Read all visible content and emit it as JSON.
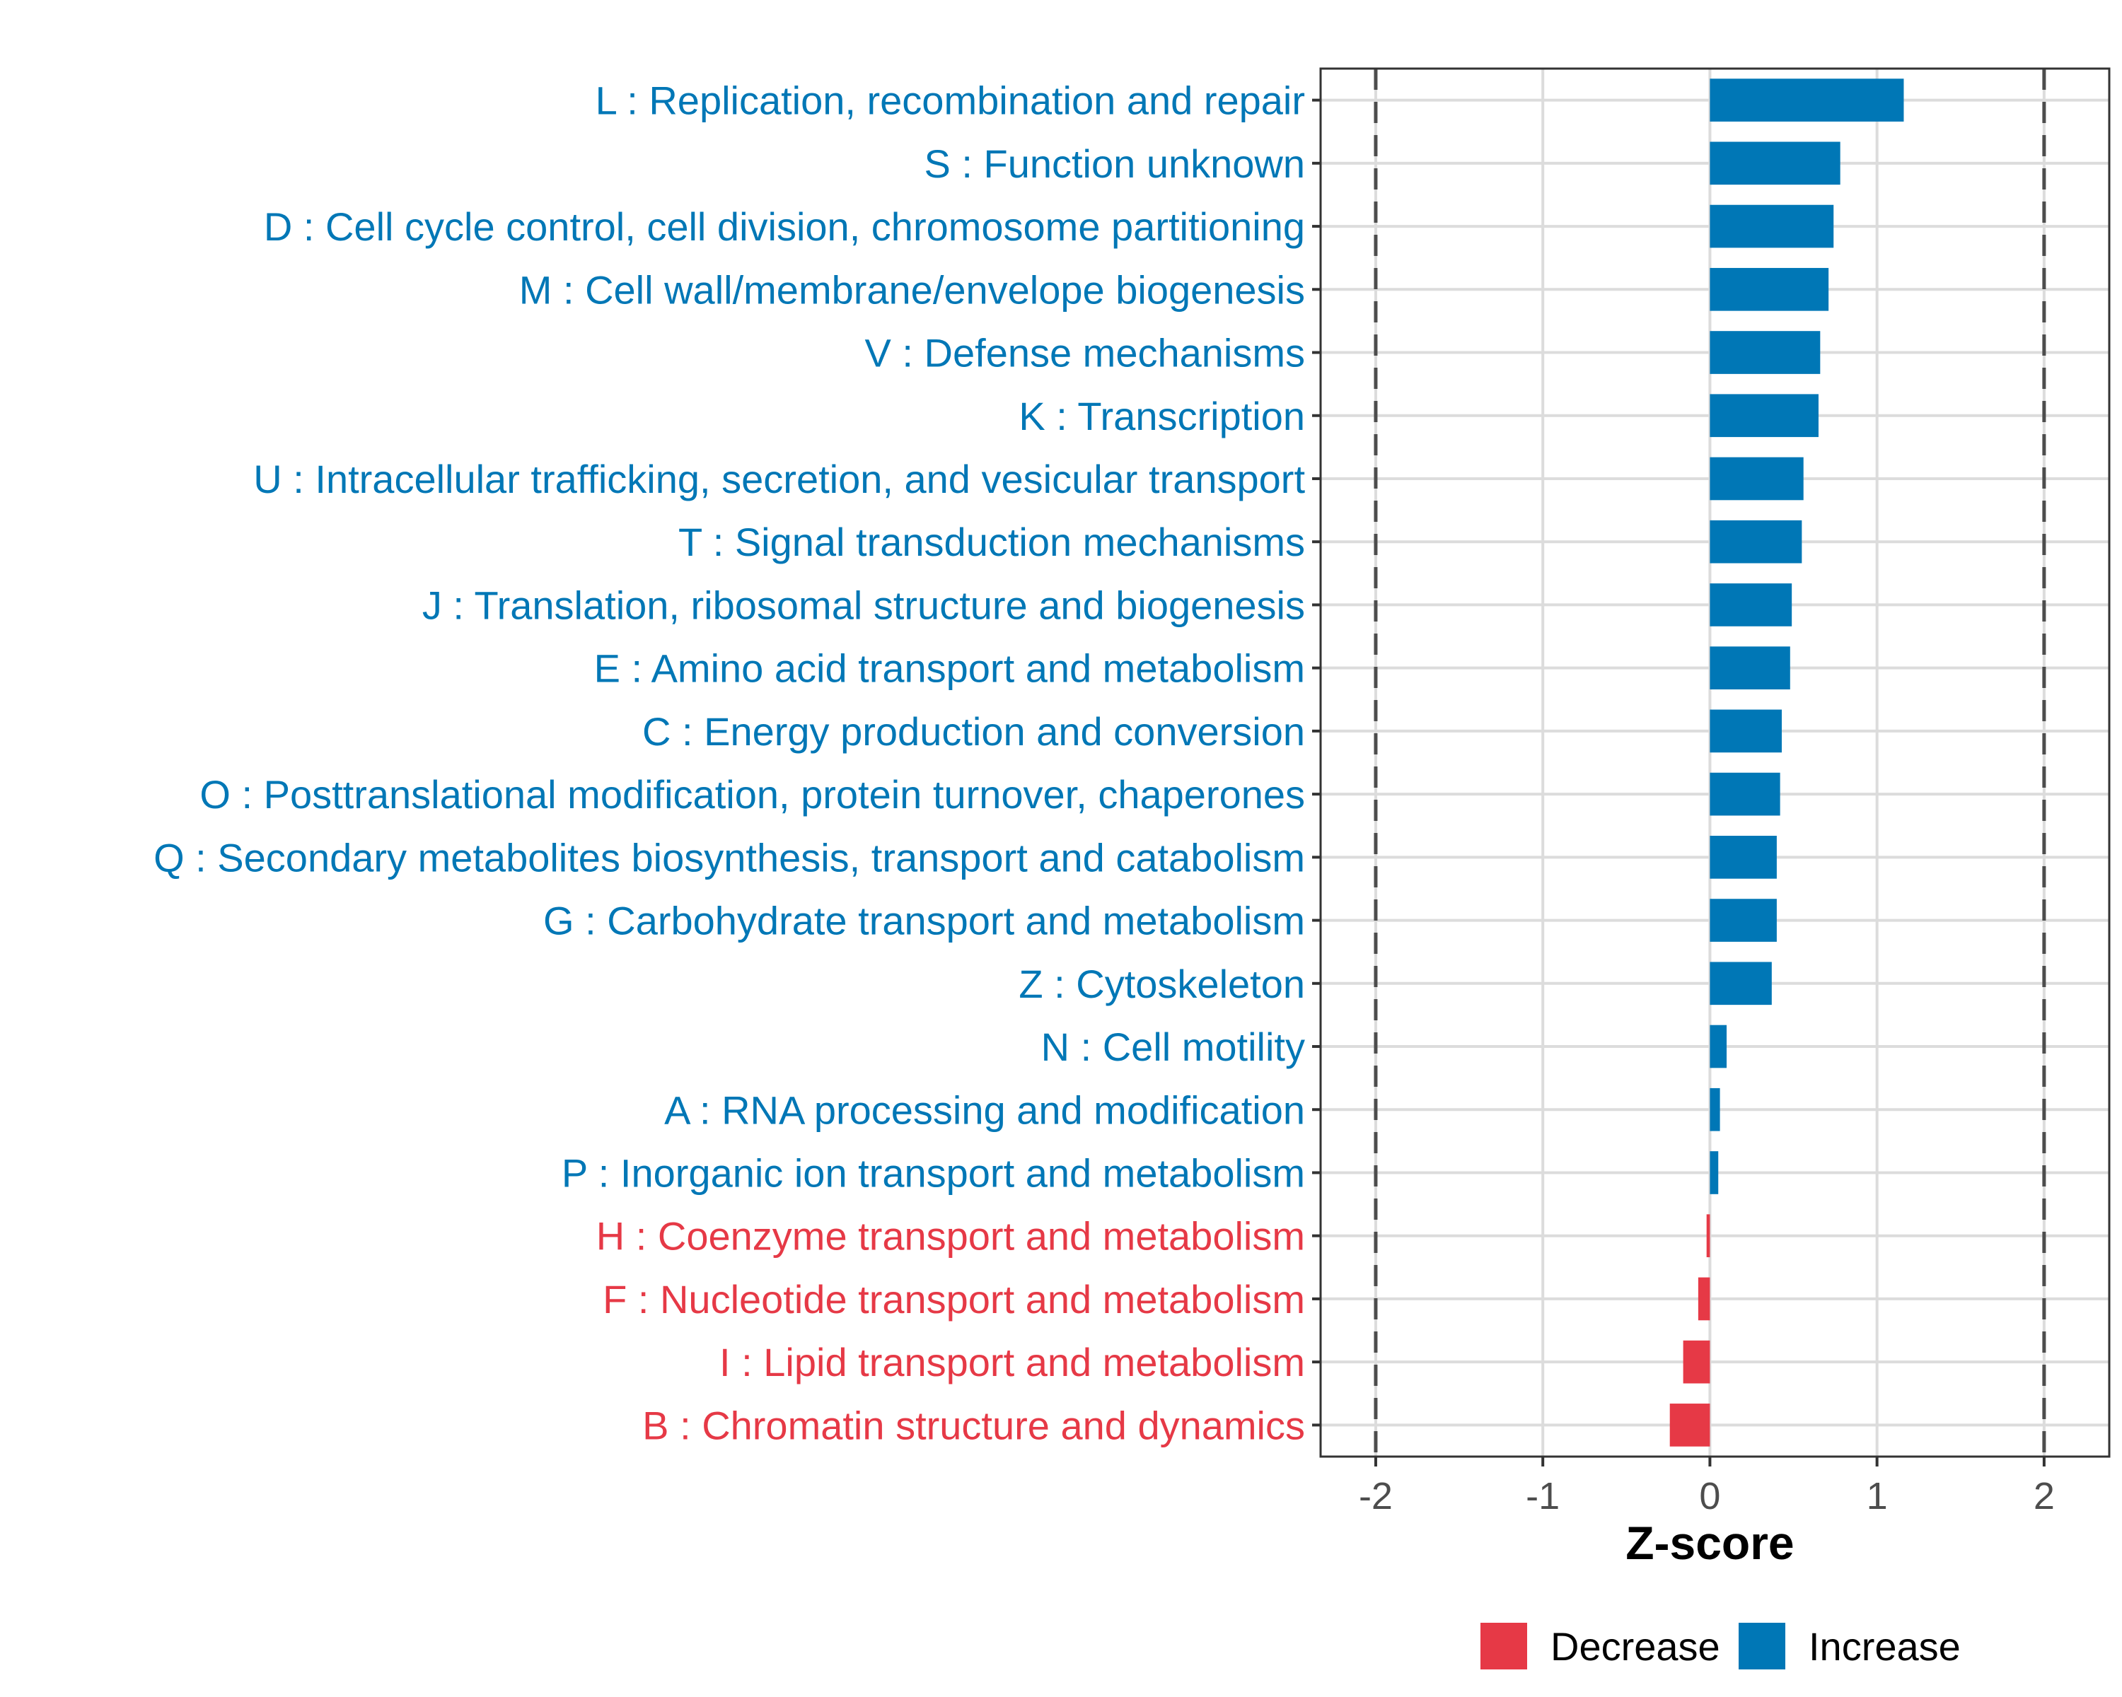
{
  "chart_data": {
    "type": "bar",
    "orientation": "horizontal",
    "title": "",
    "xlabel": "Z-score",
    "ylabel": "",
    "xlim": [
      -2.33,
      2.39
    ],
    "xticks": [
      -2,
      -1,
      0,
      1,
      2
    ],
    "xtick_labels": [
      "-2",
      "-1",
      "0",
      "1",
      "2"
    ],
    "grid": true,
    "reference_lines": [
      -2,
      2
    ],
    "legend": {
      "placement": "bottom",
      "entries": [
        {
          "label": "Decrease",
          "color": "#E63946"
        },
        {
          "label": "Increase",
          "color": "#0077B6"
        }
      ]
    },
    "categories": [
      "L : Replication, recombination and repair",
      "S : Function unknown",
      "D : Cell cycle control, cell division, chromosome partitioning",
      "M : Cell wall/membrane/envelope biogenesis",
      "V : Defense mechanisms",
      "K : Transcription",
      "U : Intracellular trafficking, secretion, and vesicular transport",
      "T : Signal transduction mechanisms",
      "J : Translation, ribosomal structure and biogenesis",
      "E : Amino acid transport and metabolism",
      "C : Energy production and conversion",
      "O : Posttranslational modification, protein turnover, chaperones",
      "Q : Secondary metabolites biosynthesis, transport and catabolism",
      "G : Carbohydrate transport and metabolism",
      "Z : Cytoskeleton",
      "N : Cell motility",
      "A : RNA processing and modification",
      "P : Inorganic ion transport and metabolism",
      "H : Coenzyme transport and metabolism",
      "F : Nucleotide transport and metabolism",
      "I : Lipid transport and metabolism",
      "B : Chromatin structure and dynamics"
    ],
    "values": [
      1.16,
      0.78,
      0.74,
      0.71,
      0.66,
      0.65,
      0.56,
      0.55,
      0.49,
      0.48,
      0.43,
      0.42,
      0.4,
      0.4,
      0.37,
      0.1,
      0.06,
      0.05,
      -0.02,
      -0.07,
      -0.16,
      -0.24
    ],
    "groups": [
      "Increase",
      "Increase",
      "Increase",
      "Increase",
      "Increase",
      "Increase",
      "Increase",
      "Increase",
      "Increase",
      "Increase",
      "Increase",
      "Increase",
      "Increase",
      "Increase",
      "Increase",
      "Increase",
      "Increase",
      "Increase",
      "Decrease",
      "Decrease",
      "Decrease",
      "Decrease"
    ]
  },
  "colors": {
    "Increase": "#0077B6",
    "Decrease": "#E63946",
    "grid": "#dcdcdc",
    "reference_line": "#4d4d4d",
    "panel_border": "#333333"
  }
}
